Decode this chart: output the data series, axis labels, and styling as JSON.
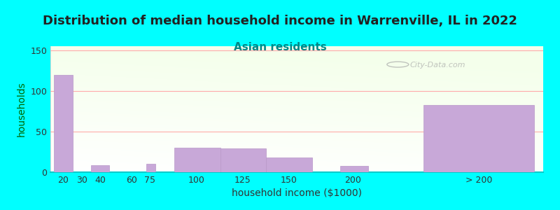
{
  "title": "Distribution of median household income in Warrenville, IL in 2022",
  "subtitle": "Asian residents",
  "xlabel": "household income ($1000)",
  "ylabel": "households",
  "background_color": "#00FFFF",
  "bar_color": "#c8a8d8",
  "bar_edge_color": "#b898c8",
  "watermark": "City-Data.com",
  "categories": [
    "20",
    "30",
    "40",
    "60",
    "75",
    "100",
    "125",
    "150",
    "200",
    "> 200"
  ],
  "values": [
    120,
    0,
    9,
    0,
    10,
    30,
    29,
    18,
    8,
    83
  ],
  "bar_lefts": [
    10,
    20,
    30,
    45,
    60,
    75,
    100,
    125,
    165,
    210
  ],
  "bar_widths": [
    10,
    5,
    10,
    5,
    5,
    25,
    25,
    25,
    15,
    60
  ],
  "xlim": [
    8,
    275
  ],
  "ylim": [
    0,
    155
  ],
  "yticks": [
    0,
    50,
    100,
    150
  ],
  "xtick_positions": [
    15,
    25,
    35,
    52,
    62,
    87,
    112,
    137,
    172,
    240
  ],
  "title_fontsize": 13,
  "subtitle_fontsize": 11,
  "axis_label_fontsize": 10,
  "tick_fontsize": 9,
  "ylabel_color": "#006600",
  "subtitle_color": "#008888",
  "title_color": "#222222"
}
